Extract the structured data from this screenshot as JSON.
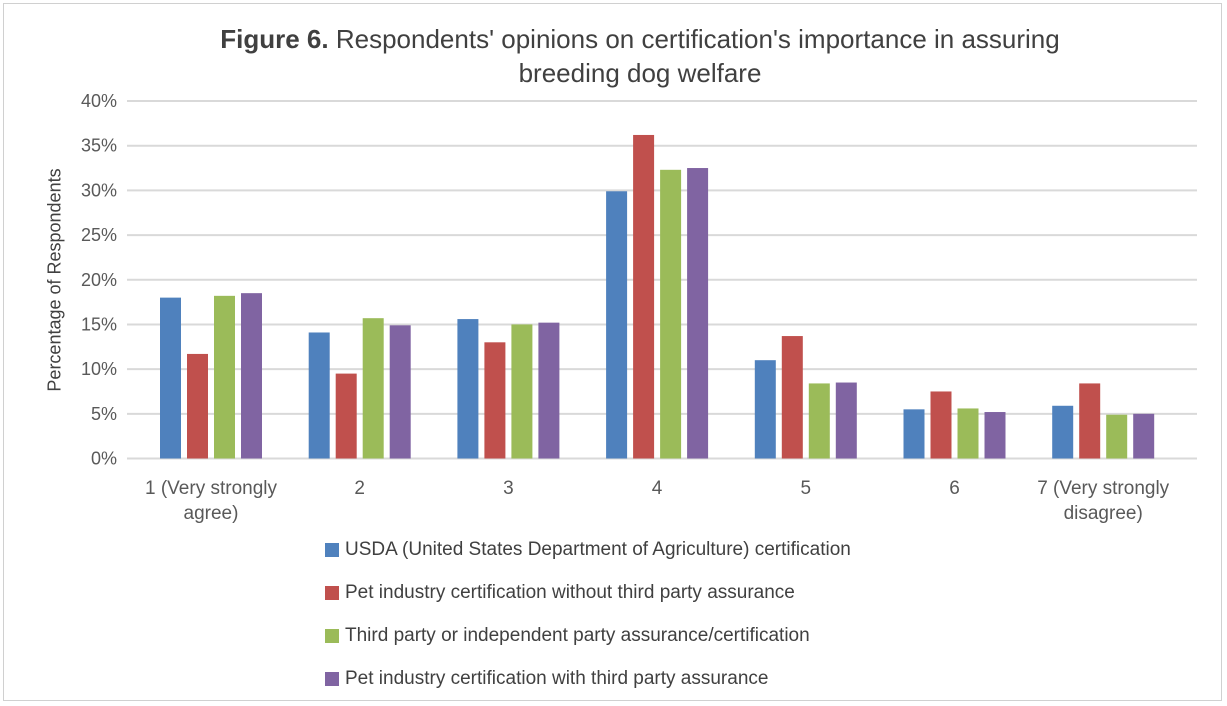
{
  "chart_data": {
    "type": "bar",
    "title_bold": "Figure 6.",
    "title_rest": "Respondents' opinions on certification's importance in assuring",
    "title_line2": "breeding dog welfare",
    "xlabel": "",
    "ylabel": "Percentage of Respondents",
    "ylim": [
      0,
      40
    ],
    "yticks": [
      "0%",
      "5%",
      "10%",
      "15%",
      "20%",
      "25%",
      "30%",
      "35%",
      "40%"
    ],
    "grid": true,
    "legend_position": "bottom",
    "categories": [
      "1 (Very strongly agree)",
      "2",
      "3",
      "4",
      "5",
      "6",
      "7 (Very strongly disagree)"
    ],
    "series": [
      {
        "name": "USDA (United States Department of Agriculture) certification",
        "color": "#4f81bd",
        "values": [
          18.0,
          14.1,
          15.6,
          29.9,
          11.0,
          5.5,
          5.9
        ]
      },
      {
        "name": "Pet industry certification without third party assurance",
        "color": "#c0504d",
        "values": [
          11.7,
          9.5,
          13.0,
          36.2,
          13.7,
          7.5,
          8.4
        ]
      },
      {
        "name": "Third party or independent party assurance/certification",
        "color": "#9bbb59",
        "values": [
          18.2,
          15.7,
          15.0,
          32.3,
          8.4,
          5.6,
          4.9
        ]
      },
      {
        "name": "Pet industry certification with third party assurance",
        "color": "#8064a2",
        "values": [
          18.5,
          14.9,
          15.2,
          32.5,
          8.5,
          5.2,
          5.0
        ]
      }
    ]
  }
}
